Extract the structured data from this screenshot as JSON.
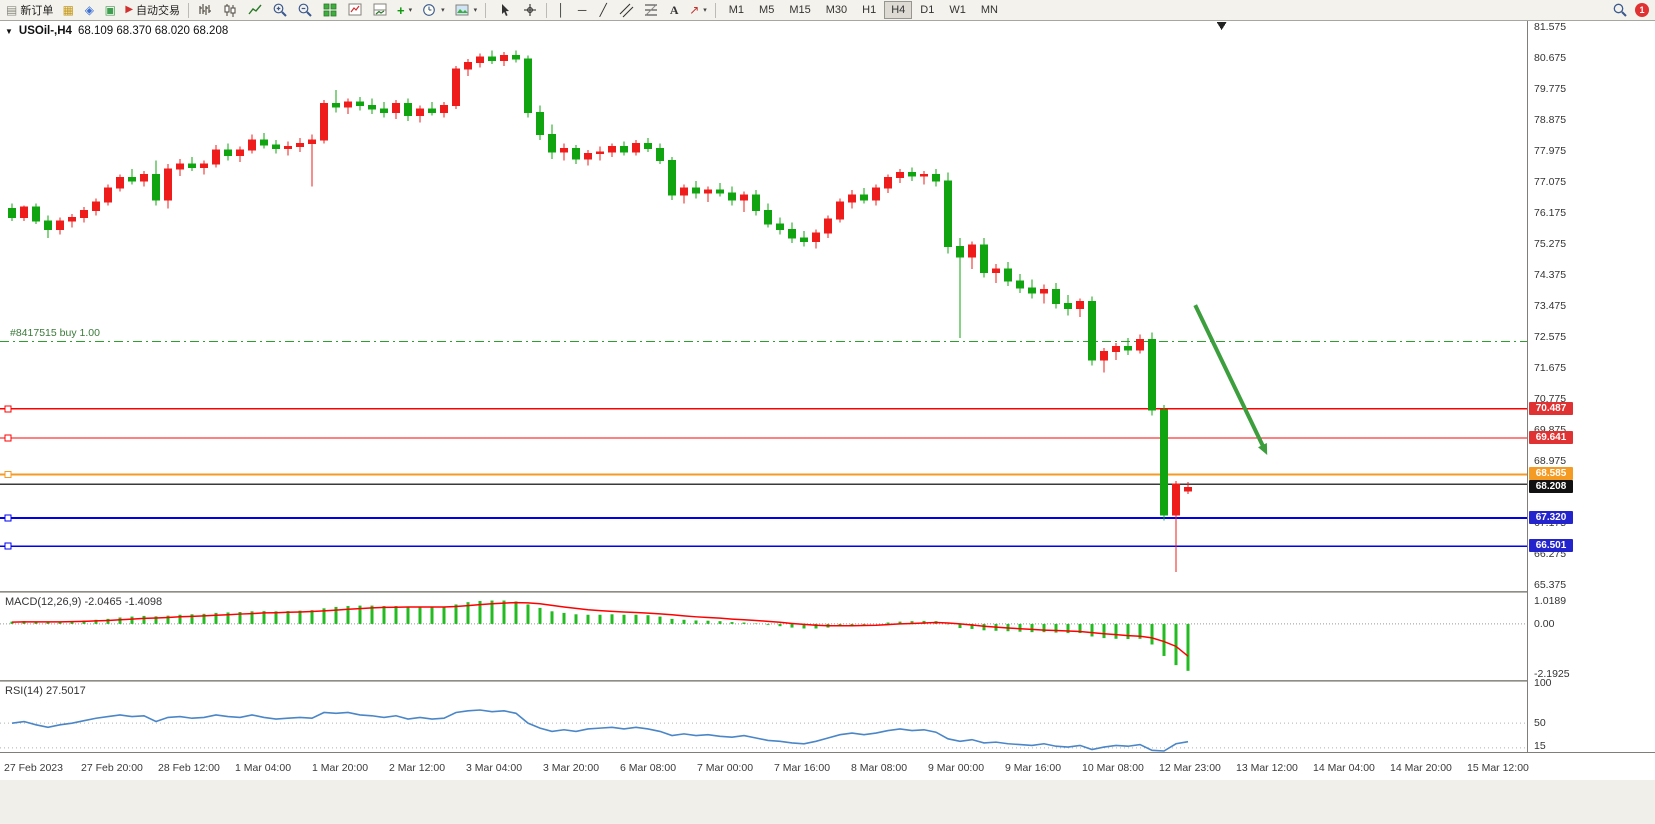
{
  "toolbar": {
    "new_order": "新订单",
    "autotrading": "自动交易",
    "timeframes": [
      "M1",
      "M5",
      "M15",
      "M30",
      "H1",
      "H4",
      "D1",
      "W1",
      "MN"
    ],
    "active_timeframe": "H4",
    "notification_badge": "1",
    "icon_names": [
      "new-order-icon",
      "market-watch-icon",
      "navigator-icon",
      "terminal-icon",
      "autotrading-icon",
      "bar-chart-icon",
      "candlestick-chart-icon",
      "line-chart-icon",
      "zoom-in-icon",
      "zoom-out-icon",
      "tile-windows-icon",
      "indicators-icon",
      "indicator-window-icon",
      "add-indicator-icon",
      "period-clock-icon",
      "template-icon",
      "cursor-icon",
      "crosshair-icon",
      "vertical-line-icon",
      "horizontal-line-icon",
      "trendline-icon",
      "channel-icon",
      "fibonacci-icon",
      "text-tool-icon",
      "arrows-tool-icon",
      "search-icon"
    ]
  },
  "glyphs": {
    "new_order_doc": "▤",
    "market_watch": "▦",
    "navigator": "◈",
    "terminal": "▣",
    "autotrading_play": "▶",
    "add_plus": "+",
    "vertical_line": "│",
    "horizontal_line": "─",
    "trendline": "╱",
    "text_tool": "A",
    "arrows_tool": "↗",
    "caret": "▾",
    "one_click": "▼"
  },
  "time_axis": {
    "labels": [
      "27 Feb 2023",
      "27 Feb 20:00",
      "28 Feb 12:00",
      "1 Mar 04:00",
      "1 Mar 20:00",
      "2 Mar 12:00",
      "3 Mar 04:00",
      "3 Mar 20:00",
      "6 Mar 08:00",
      "7 Mar 00:00",
      "7 Mar 16:00",
      "8 Mar 08:00",
      "9 Mar 00:00",
      "9 Mar 16:00",
      "10 Mar 08:00",
      "12 Mar 23:00",
      "13 Mar 12:00",
      "14 Mar 04:00",
      "14 Mar 20:00",
      "15 Mar 12:00"
    ]
  },
  "chart_data": [
    {
      "id": "price",
      "type": "candlestick",
      "symbol": "USOil-,H4",
      "ohlc_text": "68.109 68.370 68.020 68.208",
      "up_color": "#ef1c1c",
      "down_color": "#10a510",
      "y_axis": {
        "min": 65.2,
        "max": 81.75,
        "tick_labels": [
          "81.575",
          "80.675",
          "79.775",
          "78.875",
          "77.975",
          "77.075",
          "76.175",
          "75.275",
          "74.375",
          "73.475",
          "72.575",
          "71.675",
          "70.775",
          "69.875",
          "68.975",
          "67.175",
          "66.275",
          "65.375"
        ]
      },
      "price_tags": [
        {
          "text": "70.487",
          "value": 70.487,
          "bg": "#e03232"
        },
        {
          "text": "69.641",
          "value": 69.641,
          "bg": "#e03232"
        },
        {
          "text": "68.585",
          "value": 68.585,
          "bg": "#f59a23"
        },
        {
          "text": "68.208",
          "value": 68.208,
          "bg": "#111111"
        },
        {
          "text": "67.320",
          "value": 67.32,
          "bg": "#2424cc"
        },
        {
          "text": "66.501",
          "value": 66.501,
          "bg": "#2424cc"
        }
      ],
      "hlines": [
        {
          "price": 72.45,
          "color": "#2ca02c",
          "style": "dashdot",
          "width": 1,
          "label": "#8417515 buy 1.00",
          "handle": false
        },
        {
          "price": 70.487,
          "color": "#ff0000",
          "style": "solid",
          "width": 1.4,
          "handle": true
        },
        {
          "price": 69.641,
          "color": "#ff0000",
          "style": "solid",
          "width": 1.4,
          "handle": true
        },
        {
          "price": 68.585,
          "color": "#f59a23",
          "style": "solid",
          "width": 2,
          "handle": true
        },
        {
          "price": 68.3,
          "color": "#3a3a3a",
          "style": "solid",
          "width": 1.2,
          "handle": false
        },
        {
          "price": 67.32,
          "color": "#0000ee",
          "style": "solid",
          "width": 1.6,
          "handle": true
        },
        {
          "price": 66.501,
          "color": "#0000ee",
          "style": "solid",
          "width": 1.6,
          "handle": true
        }
      ],
      "arrow": {
        "from_index": 98.6,
        "from_price": 73.5,
        "to_index": 104.6,
        "to_price": 69.15,
        "color": "#3c9e3c",
        "width": 4
      },
      "shift_marker_index": 100.8,
      "ohlc": [
        [
          76.3,
          76.45,
          75.95,
          76.05
        ],
        [
          76.05,
          76.4,
          75.95,
          76.35
        ],
        [
          76.35,
          76.45,
          75.85,
          75.95
        ],
        [
          75.95,
          76.1,
          75.45,
          75.7
        ],
        [
          75.7,
          76.05,
          75.55,
          75.95
        ],
        [
          75.95,
          76.15,
          75.75,
          76.05
        ],
        [
          76.05,
          76.35,
          75.9,
          76.25
        ],
        [
          76.25,
          76.6,
          76.1,
          76.5
        ],
        [
          76.5,
          77.0,
          76.4,
          76.9
        ],
        [
          76.9,
          77.3,
          76.8,
          77.2
        ],
        [
          77.2,
          77.45,
          77.0,
          77.1
        ],
        [
          77.1,
          77.4,
          76.95,
          77.3
        ],
        [
          77.3,
          77.7,
          76.4,
          76.55
        ],
        [
          76.55,
          77.6,
          76.3,
          77.45
        ],
        [
          77.45,
          77.75,
          77.25,
          77.6
        ],
        [
          77.6,
          77.8,
          77.4,
          77.5
        ],
        [
          77.5,
          77.7,
          77.3,
          77.6
        ],
        [
          77.6,
          78.15,
          77.5,
          78.0
        ],
        [
          78.0,
          78.2,
          77.7,
          77.85
        ],
        [
          77.85,
          78.1,
          77.65,
          78.0
        ],
        [
          78.0,
          78.45,
          77.9,
          78.3
        ],
        [
          78.3,
          78.5,
          78.05,
          78.15
        ],
        [
          78.15,
          78.3,
          77.9,
          78.05
        ],
        [
          78.05,
          78.25,
          77.85,
          78.1
        ],
        [
          78.1,
          78.35,
          77.95,
          78.2
        ],
        [
          78.2,
          78.45,
          76.95,
          78.3
        ],
        [
          78.3,
          79.45,
          78.2,
          79.35
        ],
        [
          79.35,
          79.75,
          79.1,
          79.25
        ],
        [
          79.25,
          79.5,
          79.05,
          79.4
        ],
        [
          79.4,
          79.55,
          79.15,
          79.3
        ],
        [
          79.3,
          79.5,
          79.05,
          79.2
        ],
        [
          79.2,
          79.4,
          78.95,
          79.1
        ],
        [
          79.1,
          79.45,
          78.9,
          79.35
        ],
        [
          79.35,
          79.5,
          78.85,
          79.0
        ],
        [
          79.0,
          79.3,
          78.8,
          79.2
        ],
        [
          79.2,
          79.4,
          79.0,
          79.1
        ],
        [
          79.1,
          79.4,
          78.95,
          79.3
        ],
        [
          79.3,
          80.45,
          79.2,
          80.35
        ],
        [
          80.35,
          80.65,
          80.15,
          80.55
        ],
        [
          80.55,
          80.8,
          80.4,
          80.7
        ],
        [
          80.7,
          80.9,
          80.5,
          80.6
        ],
        [
          80.6,
          80.85,
          80.45,
          80.75
        ],
        [
          80.75,
          80.9,
          80.55,
          80.65
        ],
        [
          80.65,
          80.75,
          78.95,
          79.1
        ],
        [
          79.1,
          79.3,
          78.3,
          78.45
        ],
        [
          78.45,
          78.75,
          77.75,
          77.95
        ],
        [
          77.95,
          78.2,
          77.7,
          78.05
        ],
        [
          78.05,
          78.15,
          77.6,
          77.75
        ],
        [
          77.75,
          78.0,
          77.55,
          77.9
        ],
        [
          77.9,
          78.1,
          77.7,
          77.95
        ],
        [
          77.95,
          78.2,
          77.8,
          78.1
        ],
        [
          78.1,
          78.25,
          77.85,
          77.95
        ],
        [
          77.95,
          78.3,
          77.85,
          78.2
        ],
        [
          78.2,
          78.35,
          77.95,
          78.05
        ],
        [
          78.05,
          78.2,
          77.6,
          77.7
        ],
        [
          77.7,
          77.8,
          76.55,
          76.7
        ],
        [
          76.7,
          77.0,
          76.45,
          76.9
        ],
        [
          76.9,
          77.1,
          76.6,
          76.75
        ],
        [
          76.75,
          76.95,
          76.5,
          76.85
        ],
        [
          76.85,
          77.05,
          76.65,
          76.75
        ],
        [
          76.75,
          76.95,
          76.4,
          76.55
        ],
        [
          76.55,
          76.8,
          76.2,
          76.7
        ],
        [
          76.7,
          76.85,
          76.1,
          76.25
        ],
        [
          76.25,
          76.45,
          75.75,
          75.85
        ],
        [
          75.85,
          76.05,
          75.55,
          75.7
        ],
        [
          75.7,
          75.9,
          75.3,
          75.45
        ],
        [
          75.45,
          75.65,
          75.2,
          75.35
        ],
        [
          75.35,
          75.7,
          75.15,
          75.6
        ],
        [
          75.6,
          76.1,
          75.45,
          76.0
        ],
        [
          76.0,
          76.6,
          75.9,
          76.5
        ],
        [
          76.5,
          76.85,
          76.3,
          76.7
        ],
        [
          76.7,
          76.9,
          76.45,
          76.55
        ],
        [
          76.55,
          77.0,
          76.4,
          76.9
        ],
        [
          76.9,
          77.3,
          76.75,
          77.2
        ],
        [
          77.2,
          77.45,
          77.05,
          77.35
        ],
        [
          77.35,
          77.5,
          77.1,
          77.25
        ],
        [
          77.25,
          77.4,
          77.0,
          77.3
        ],
        [
          77.3,
          77.45,
          76.95,
          77.1
        ],
        [
          77.1,
          77.35,
          75.0,
          75.2
        ],
        [
          75.2,
          75.45,
          72.55,
          74.9
        ],
        [
          74.9,
          75.35,
          74.55,
          75.25
        ],
        [
          75.25,
          75.45,
          74.3,
          74.45
        ],
        [
          74.45,
          74.7,
          74.15,
          74.55
        ],
        [
          74.55,
          74.75,
          74.05,
          74.2
        ],
        [
          74.2,
          74.4,
          73.85,
          74.0
        ],
        [
          74.0,
          74.25,
          73.7,
          73.85
        ],
        [
          73.85,
          74.1,
          73.55,
          73.95
        ],
        [
          73.95,
          74.15,
          73.4,
          73.55
        ],
        [
          73.55,
          73.8,
          73.2,
          73.4
        ],
        [
          73.4,
          73.7,
          73.15,
          73.6
        ],
        [
          73.6,
          73.75,
          71.75,
          71.9
        ],
        [
          71.9,
          72.25,
          71.55,
          72.15
        ],
        [
          72.15,
          72.4,
          71.9,
          72.3
        ],
        [
          72.3,
          72.55,
          72.05,
          72.2
        ],
        [
          72.2,
          72.65,
          72.1,
          72.5
        ],
        [
          72.5,
          72.7,
          70.3,
          70.45
        ],
        [
          70.45,
          70.6,
          67.25,
          67.4
        ],
        [
          67.4,
          68.4,
          65.75,
          68.3
        ],
        [
          68.109,
          68.37,
          68.02,
          68.208
        ]
      ]
    },
    {
      "id": "macd",
      "type": "bar",
      "label": "MACD(12,26,9) -2.0465 -1.4098",
      "hist_color": "#22bb22",
      "signal_color": "#ff0000",
      "y_axis": {
        "min": -2.45,
        "max": 1.35,
        "tick_values": [
          1.0189,
          0,
          -2.1925
        ],
        "tick_labels": [
          "1.0189",
          "0.00",
          "-2.1925"
        ]
      },
      "histogram": [
        0.1,
        0.12,
        0.1,
        0.08,
        0.1,
        0.12,
        0.15,
        0.18,
        0.22,
        0.28,
        0.32,
        0.35,
        0.33,
        0.36,
        0.4,
        0.42,
        0.44,
        0.48,
        0.5,
        0.52,
        0.55,
        0.56,
        0.55,
        0.56,
        0.58,
        0.6,
        0.68,
        0.74,
        0.78,
        0.8,
        0.8,
        0.78,
        0.78,
        0.76,
        0.75,
        0.74,
        0.75,
        0.85,
        0.95,
        1.0,
        1.02,
        1.02,
        0.98,
        0.85,
        0.7,
        0.55,
        0.48,
        0.42,
        0.4,
        0.4,
        0.42,
        0.4,
        0.4,
        0.38,
        0.32,
        0.22,
        0.18,
        0.15,
        0.14,
        0.12,
        0.08,
        0.06,
        0.02,
        -0.04,
        -0.1,
        -0.16,
        -0.2,
        -0.2,
        -0.16,
        -0.1,
        -0.05,
        -0.04,
        0.0,
        0.06,
        0.1,
        0.12,
        0.13,
        0.12,
        -0.02,
        -0.18,
        -0.22,
        -0.28,
        -0.3,
        -0.32,
        -0.34,
        -0.36,
        -0.36,
        -0.38,
        -0.4,
        -0.4,
        -0.55,
        -0.62,
        -0.65,
        -0.66,
        -0.65,
        -0.9,
        -1.4,
        -1.8,
        -2.05
      ],
      "signal": [
        0.08,
        0.09,
        0.09,
        0.09,
        0.09,
        0.1,
        0.11,
        0.13,
        0.15,
        0.18,
        0.21,
        0.24,
        0.26,
        0.28,
        0.31,
        0.33,
        0.35,
        0.38,
        0.4,
        0.43,
        0.45,
        0.48,
        0.49,
        0.51,
        0.52,
        0.54,
        0.57,
        0.6,
        0.64,
        0.67,
        0.7,
        0.72,
        0.73,
        0.74,
        0.74,
        0.74,
        0.74,
        0.76,
        0.8,
        0.84,
        0.88,
        0.91,
        0.93,
        0.92,
        0.88,
        0.81,
        0.74,
        0.68,
        0.62,
        0.58,
        0.55,
        0.52,
        0.5,
        0.47,
        0.44,
        0.4,
        0.35,
        0.31,
        0.28,
        0.25,
        0.21,
        0.18,
        0.15,
        0.11,
        0.07,
        0.02,
        -0.02,
        -0.06,
        -0.08,
        -0.08,
        -0.08,
        -0.07,
        -0.06,
        -0.03,
        0.0,
        0.02,
        0.04,
        0.06,
        0.04,
        0.0,
        -0.05,
        -0.1,
        -0.14,
        -0.18,
        -0.21,
        -0.24,
        -0.27,
        -0.29,
        -0.31,
        -0.33,
        -0.38,
        -0.43,
        -0.47,
        -0.51,
        -0.54,
        -0.61,
        -0.77,
        -0.98,
        -1.41
      ]
    },
    {
      "id": "rsi",
      "type": "line",
      "label": "RSI(14) 27.5017",
      "line_color": "#4a86c8",
      "y_axis": {
        "min": 15,
        "max": 100,
        "tick_values": [
          100,
          50,
          15
        ],
        "tick_labels": [
          "100",
          "50",
          "15"
        ],
        "levels": [
          50,
          20
        ]
      },
      "values": [
        50,
        52,
        48,
        45,
        48,
        50,
        53,
        56,
        58,
        60,
        58,
        59,
        52,
        57,
        58,
        56,
        57,
        60,
        58,
        57,
        60,
        57,
        55,
        56,
        57,
        56,
        63,
        62,
        63,
        60,
        59,
        57,
        59,
        55,
        57,
        55,
        56,
        63,
        65,
        66,
        64,
        65,
        62,
        50,
        44,
        40,
        42,
        40,
        43,
        44,
        45,
        43,
        45,
        43,
        40,
        35,
        37,
        35,
        36,
        34,
        33,
        35,
        32,
        29,
        28,
        26,
        25,
        28,
        32,
        36,
        38,
        36,
        38,
        41,
        43,
        41,
        42,
        39,
        31,
        28,
        30,
        26,
        27,
        25,
        24,
        23,
        25,
        22,
        21,
        23,
        18,
        21,
        23,
        22,
        24,
        17,
        12,
        25,
        27.5
      ]
    }
  ]
}
